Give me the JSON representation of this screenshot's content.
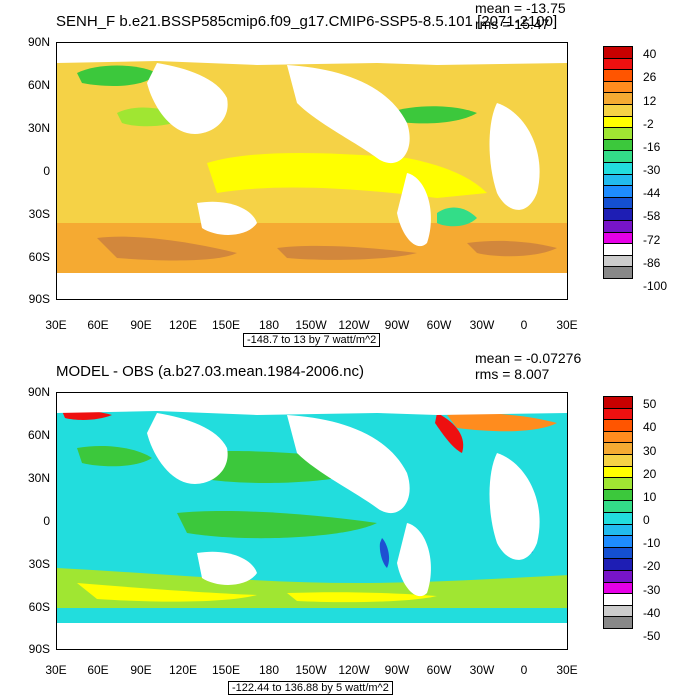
{
  "panels": [
    {
      "title": "SENH_F b.e21.BSSP585cmip6.f09_g17.CMIP6-SSP5-8.5.101 [2071-2100]",
      "mean": "mean = -13.75",
      "rms": "rms = 15.47",
      "contour_info": "-148.7 to 13 by 7 watt/m^2",
      "lat_labels": [
        "90N",
        "60N",
        "30N",
        "0",
        "30S",
        "60S",
        "90S"
      ],
      "lon_labels": [
        "30E",
        "60E",
        "90E",
        "120E",
        "150E",
        "180",
        "150W",
        "120W",
        "90W",
        "60W",
        "30W",
        "0",
        "30E"
      ],
      "colorbar_labels": [
        "40",
        "26",
        "12",
        "-2",
        "-16",
        "-30",
        "-44",
        "-58",
        "-72",
        "-86",
        "-100"
      ],
      "colorbar_colors": [
        "#c80000",
        "#ee1010",
        "#ff5500",
        "#ff8c1e",
        "#f5aa32",
        "#f5d246",
        "#ffff00",
        "#a0e632",
        "#3cc83c",
        "#33dd88",
        "#22dddd",
        "#22bbee",
        "#1e8cff",
        "#1450d2",
        "#1e1eb4",
        "#7814c8",
        "#e600e6",
        "#ffffff",
        "#cccccc",
        "#888888"
      ],
      "palette": {
        "land": "#ffffff",
        "ocean_main": "#f5d246",
        "ocean_warm": "#ffff00",
        "ocean_orange": "#f5aa32",
        "ocean_deep": "#d2873c",
        "ocean_green": "#3cc83c",
        "ocean_lightgreen": "#a0e632",
        "ocean_teal": "#33dd88"
      }
    },
    {
      "title": "MODEL - OBS (a.b27.03.mean.1984-2006.nc)",
      "mean": "mean = -0.07276",
      "rms": "rms = 8.007",
      "contour_info": "-122.44 to 136.88 by 5 watt/m^2",
      "lat_labels": [
        "90N",
        "60N",
        "30N",
        "0",
        "30S",
        "60S",
        "90S"
      ],
      "lon_labels": [
        "30E",
        "60E",
        "90E",
        "120E",
        "150E",
        "180",
        "150W",
        "120W",
        "90W",
        "60W",
        "30W",
        "0",
        "30E"
      ],
      "colorbar_labels": [
        "50",
        "40",
        "30",
        "20",
        "10",
        "0",
        "-10",
        "-20",
        "-30",
        "-40",
        "-50"
      ],
      "colorbar_colors": [
        "#c80000",
        "#ee1010",
        "#ff5500",
        "#ff8c1e",
        "#f5aa32",
        "#f5d246",
        "#ffff00",
        "#a0e632",
        "#3cc83c",
        "#33dd88",
        "#22dddd",
        "#22bbee",
        "#1e8cff",
        "#1450d2",
        "#1e1eb4",
        "#7814c8",
        "#e600e6",
        "#ffffff",
        "#cccccc",
        "#888888"
      ],
      "palette": {
        "land": "#ffffff",
        "ocean_main": "#22dddd",
        "ocean_green": "#3cc83c",
        "ocean_lightgreen": "#a0e632",
        "ocean_yellow": "#ffff00",
        "ocean_orange": "#ff8c1e",
        "ocean_red": "#ee1010",
        "ocean_blue": "#1e50d2"
      }
    }
  ]
}
